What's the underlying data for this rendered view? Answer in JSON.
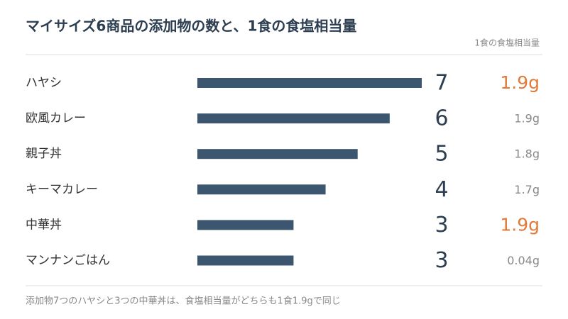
{
  "chart_data": {
    "type": "bar",
    "title": "マイサイズ6商品の添加物の数と、1食の食塩相当量",
    "categories": [
      "ハヤシ",
      "欧風カレー",
      "親子丼",
      "キーマカレー",
      "中華丼",
      "マンナンごはん"
    ],
    "values": [
      7,
      6,
      5,
      4,
      3,
      3
    ],
    "color": "#3b566e",
    "xlim": [
      0,
      7
    ],
    "salt": {
      "name": "1食の食塩相当量",
      "values": [
        1.9,
        1.9,
        1.8,
        1.7,
        1.9,
        0.04
      ],
      "value_labels": [
        "1.9g",
        "1.9g",
        "1.8g",
        "1.7g",
        "1.9g",
        "0.04g"
      ],
      "emphasis": [
        true,
        false,
        false,
        false,
        true,
        false
      ],
      "color": "#888888",
      "highlight_color": "#e07b39"
    },
    "note": "添加物7つのハヤシと3つの中華丼は、食塩相当量がどちらも1食1.9gで同じ"
  }
}
